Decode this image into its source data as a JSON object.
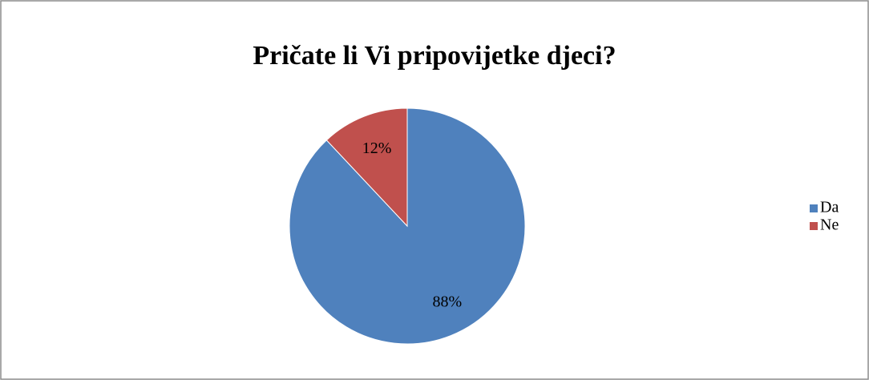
{
  "chart_data": {
    "type": "pie",
    "title": "Pričate li Vi pripovijetke djeci?",
    "categories": [
      "Da",
      "Ne"
    ],
    "values": [
      88,
      12
    ],
    "value_labels": [
      "88%",
      "12%"
    ],
    "colors": [
      "#4f81bd",
      "#c0504d"
    ],
    "legend": "right"
  }
}
